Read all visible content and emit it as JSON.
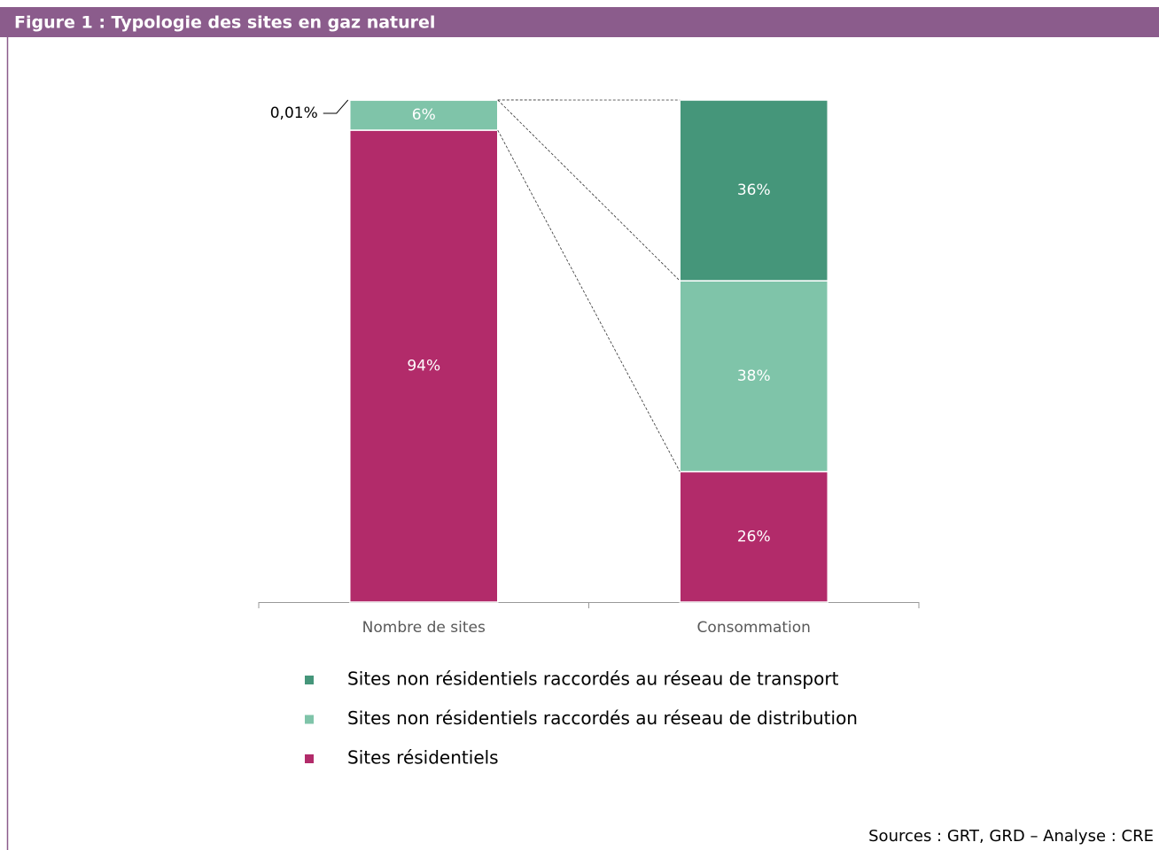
{
  "chart_data": {
    "type": "stacked-bar",
    "title": "Figure 1 : Typologie des sites en gaz naturel",
    "source": "Sources : GRT, GRD – Analyse : CRE",
    "categories": [
      "Nombre de sites",
      "Consommation"
    ],
    "ylim": [
      0,
      100
    ],
    "series": [
      {
        "name": "Sites non résidentiels raccordés au réseau de transport",
        "color": "#45967a",
        "values": [
          0.01,
          36
        ],
        "value_labels": [
          "0,01%",
          "36%"
        ]
      },
      {
        "name": "Sites non résidentiels raccordés au réseau de distribution",
        "color": "#7fc4a9",
        "values": [
          6,
          38
        ],
        "value_labels": [
          "6%",
          "38%"
        ]
      },
      {
        "name": "Sites résidentiels",
        "color": "#b22b6a",
        "values": [
          94,
          26
        ],
        "value_labels": [
          "94%",
          "26%"
        ]
      }
    ]
  }
}
